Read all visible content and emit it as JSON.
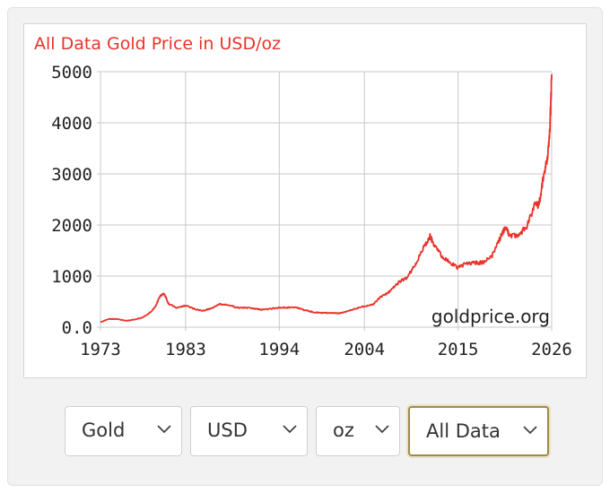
{
  "chart_data": {
    "type": "line",
    "title": "All Data Gold Price in USD/oz",
    "watermark": "goldprice.org",
    "xlim": [
      1973,
      2026
    ],
    "ylim": [
      0,
      5000
    ],
    "x_ticks": [
      1973,
      1983,
      1994,
      2004,
      2015,
      2026
    ],
    "y_ticks": [
      0,
      1000,
      2000,
      3000,
      4000,
      5000
    ],
    "y_tick_labels": [
      "0.0",
      "1000",
      "2000",
      "3000",
      "4000",
      "5000"
    ],
    "grid": true,
    "line_color": "#e8332a",
    "series": [
      {
        "x": [
          1973,
          1974,
          1975,
          1976,
          1977,
          1978,
          1979,
          1979.5,
          1980,
          1980.5,
          1981,
          1982,
          1983,
          1984,
          1985,
          1986,
          1987,
          1988,
          1989,
          1990,
          1991,
          1992,
          1993,
          1994,
          1995,
          1996,
          1997,
          1998,
          1999,
          2000,
          2001,
          2002,
          2003,
          2004,
          2005,
          2006,
          2007,
          2008,
          2009,
          2010,
          2011,
          2011.7,
          2012,
          2013,
          2014,
          2015,
          2016,
          2017,
          2018,
          2019,
          2020,
          2020.6,
          2021,
          2022,
          2023,
          2024,
          2024.5,
          2025,
          2025.5,
          2025.8,
          2026
        ],
        "y": [
          100,
          160,
          160,
          125,
          148,
          193,
          307,
          420,
          615,
          650,
          460,
          375,
          424,
          360,
          317,
          368,
          446,
          437,
          381,
          383,
          362,
          344,
          360,
          384,
          384,
          388,
          331,
          294,
          279,
          279,
          271,
          310,
          363,
          409,
          444,
          603,
          695,
          872,
          972,
          1225,
          1572,
          1780,
          1669,
          1411,
          1266,
          1160,
          1251,
          1257,
          1268,
          1393,
          1770,
          1970,
          1799,
          1800,
          1943,
          2386,
          2400,
          2900,
          3300,
          3900,
          4950
        ]
      }
    ]
  },
  "controls": {
    "metal": "Gold",
    "currency": "USD",
    "unit": "oz",
    "range": "All Data"
  }
}
